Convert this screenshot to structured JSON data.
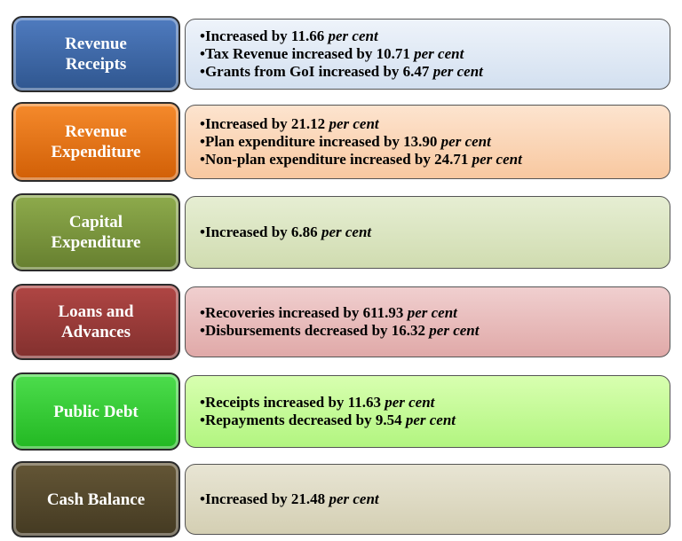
{
  "rows": [
    {
      "label": [
        "Revenue",
        "Receipts"
      ],
      "bullets": [
        {
          "text": "Increased by 11.66",
          "em": "per cent"
        },
        {
          "text": "Tax Revenue increased by 10.71",
          "em": "per cent"
        },
        {
          "text": "Grants from GoI increased by 6.47",
          "em": "per cent"
        }
      ]
    },
    {
      "label": [
        "Revenue",
        "Expenditure"
      ],
      "bullets": [
        {
          "text": "Increased by 21.12",
          "em": "per cent"
        },
        {
          "text": "Plan expenditure increased by 13.90",
          "em": "per cent"
        },
        {
          "text": "Non-plan expenditure increased by 24.71",
          "em": "per cent"
        }
      ]
    },
    {
      "label": [
        "Capital",
        "Expenditure"
      ],
      "bullets": [
        {
          "text": "Increased by 6.86",
          "em": "per cent"
        }
      ]
    },
    {
      "label": [
        "Loans and",
        "Advances"
      ],
      "bullets": [
        {
          "text": "Recoveries increased by 611.93",
          "em": "per cent"
        },
        {
          "text": "Disbursements decreased by 16.32",
          "em": "per cent"
        }
      ]
    },
    {
      "label": [
        "Public Debt"
      ],
      "bullets": [
        {
          "text": "Receipts increased by 11.63",
          "em": "per cent"
        },
        {
          "text": "Repayments decreased by 9.54",
          "em": "per cent"
        }
      ]
    },
    {
      "label": [
        "Cash Balance"
      ],
      "bullets": [
        {
          "text": "Increased by 21.48",
          "em": "per cent"
        }
      ]
    }
  ]
}
